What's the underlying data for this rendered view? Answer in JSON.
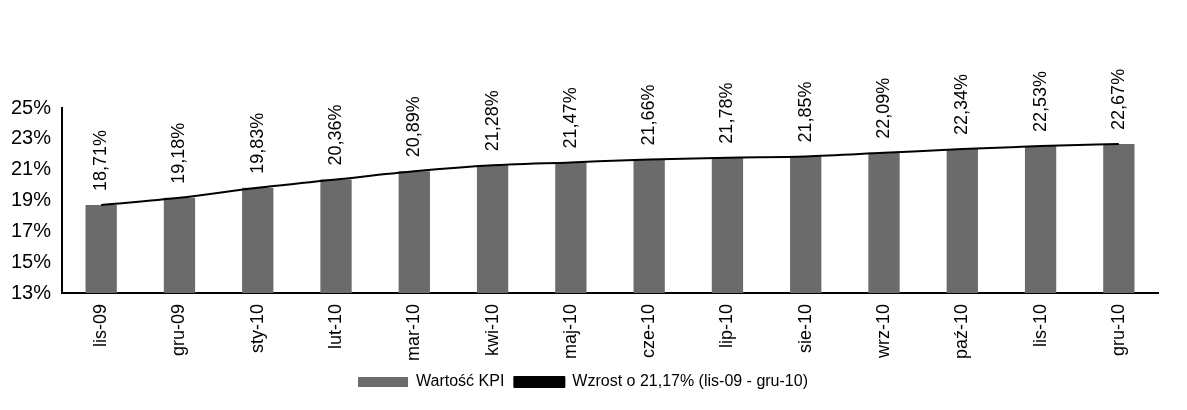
{
  "chart_data": {
    "type": "bar",
    "categories": [
      "lis-09",
      "gru-09",
      "sty-10",
      "lut-10",
      "mar-10",
      "kwi-10",
      "maj-10",
      "cze-10",
      "lip-10",
      "sie-10",
      "wrz-10",
      "paź-10",
      "lis-10",
      "gru-10"
    ],
    "series": [
      {
        "name": "Wartość KPI",
        "color": "#6b6b6b",
        "values": [
          18.71,
          19.18,
          19.83,
          20.36,
          20.89,
          21.28,
          21.47,
          21.66,
          21.78,
          21.85,
          22.09,
          22.34,
          22.53,
          22.67
        ],
        "value_labels": [
          "18,71%",
          "19,18%",
          "19,83%",
          "20,36%",
          "20,89%",
          "21,28%",
          "21,47%",
          "21,66%",
          "21,78%",
          "21,85%",
          "22,09%",
          "22,34%",
          "22,53%",
          "22,67%"
        ]
      },
      {
        "name": "Wzrost o 21,17% (lis-09 - gru-10)",
        "type": "line",
        "color": "#000000",
        "values": [
          18.71,
          19.18,
          19.83,
          20.36,
          20.89,
          21.28,
          21.47,
          21.66,
          21.78,
          21.85,
          22.09,
          22.34,
          22.53,
          22.67
        ]
      }
    ],
    "ylim": [
      13,
      25
    ],
    "yticks": [
      {
        "value": 13,
        "label": "13%"
      },
      {
        "value": 15,
        "label": "15%"
      },
      {
        "value": 17,
        "label": "17%"
      },
      {
        "value": 19,
        "label": "19%"
      },
      {
        "value": 21,
        "label": "21%"
      },
      {
        "value": 23,
        "label": "23%"
      },
      {
        "value": 25,
        "label": "25%"
      }
    ],
    "grid": false,
    "legend": "bottom"
  }
}
